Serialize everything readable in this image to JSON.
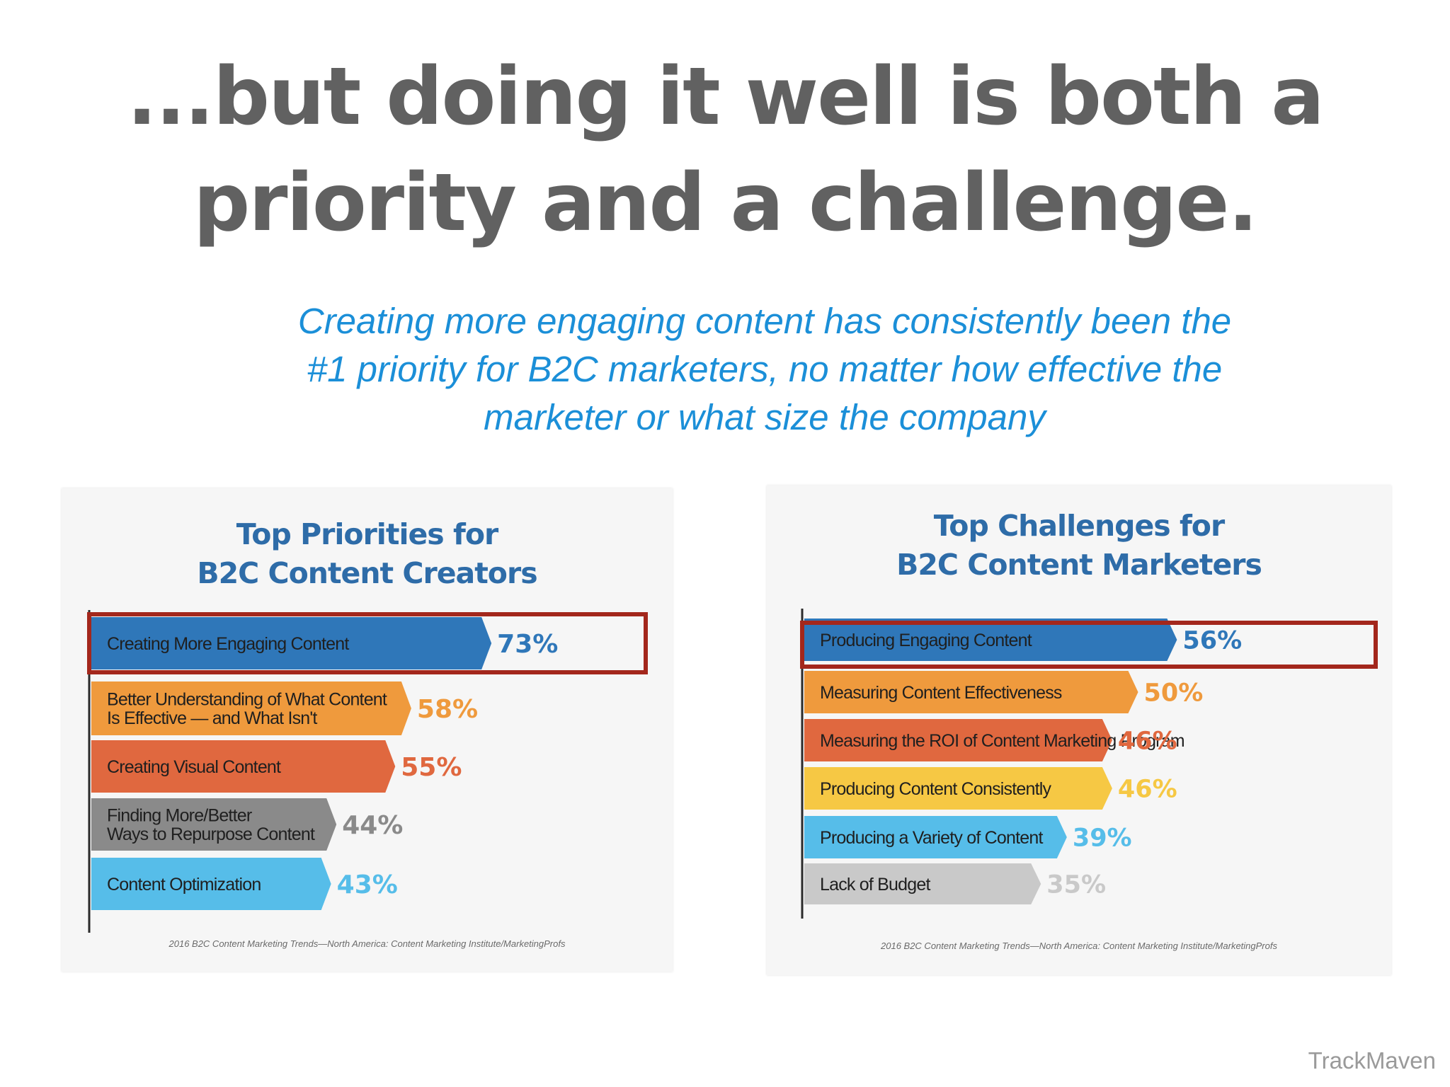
{
  "headline": {
    "line1": "...but doing it well is both a",
    "line2": "priority and a challenge."
  },
  "subhead": {
    "line1": "Creating more engaging content has consistently been the",
    "line2": "#1 priority for B2C marketers, no matter how effective the",
    "line3": "marketer or what size the company"
  },
  "brand": "TrackMaven",
  "colors": {
    "blue": "#2f77b9",
    "orange": "#ef9a3d",
    "red_orange": "#e0683f",
    "yellow": "#f6c844",
    "light_blue": "#56bde9",
    "gray": "#8a8a8a",
    "light_gray": "#c9c9c9",
    "highlight": "#a3271c",
    "title": "#2e6ca8",
    "headline": "#616161",
    "subhead": "#1b8fd8"
  },
  "chart_data": [
    {
      "type": "bar",
      "orientation": "horizontal",
      "title": [
        "Top Priorities for",
        "B2C Content Creators"
      ],
      "categories": [
        [
          "Creating More Engaging Content"
        ],
        [
          "Better Understanding of What Content",
          "Is Effective — and What Isn't"
        ],
        [
          "Creating Visual Content"
        ],
        [
          "Finding More/Better",
          "Ways to Repurpose Content"
        ],
        [
          "Content Optimization"
        ]
      ],
      "values": [
        73,
        58,
        55,
        44,
        43
      ],
      "value_labels": [
        "73%",
        "58%",
        "55%",
        "44%",
        "43%"
      ],
      "bar_colors": [
        "#2f77b9",
        "#ef9a3d",
        "#e0683f",
        "#8a8a8a",
        "#56bde9"
      ],
      "label_colors": [
        "#2f77b9",
        "#ef9a3d",
        "#e0683f",
        "#8a8a8a",
        "#56bde9"
      ],
      "highlighted_index": 0,
      "source": "2016 B2C Content Marketing Trends—North America: Content Marketing Institute/MarketingProfs"
    },
    {
      "type": "bar",
      "orientation": "horizontal",
      "title": [
        "Top Challenges for",
        "B2C Content Marketers"
      ],
      "categories": [
        [
          "Producing Engaging Content"
        ],
        [
          "Measuring Content Effectiveness"
        ],
        [
          "Measuring the ROI of Content Marketing Program"
        ],
        [
          "Producing Content Consistently"
        ],
        [
          "Producing a Variety of Content"
        ],
        [
          "Lack of Budget"
        ]
      ],
      "values": [
        56,
        50,
        46,
        46,
        39,
        35
      ],
      "value_labels": [
        "56%",
        "50%",
        "46%",
        "46%",
        "39%",
        "35%"
      ],
      "bar_colors": [
        "#2f77b9",
        "#ef9a3d",
        "#e0683f",
        "#f6c844",
        "#56bde9",
        "#c9c9c9"
      ],
      "label_colors": [
        "#2f77b9",
        "#ef9a3d",
        "#e0683f",
        "#f6c844",
        "#56bde9",
        "#c9c9c9"
      ],
      "highlighted_index": 0,
      "source": "2016 B2C Content Marketing Trends—North America: Content Marketing Institute/MarketingProfs"
    }
  ]
}
